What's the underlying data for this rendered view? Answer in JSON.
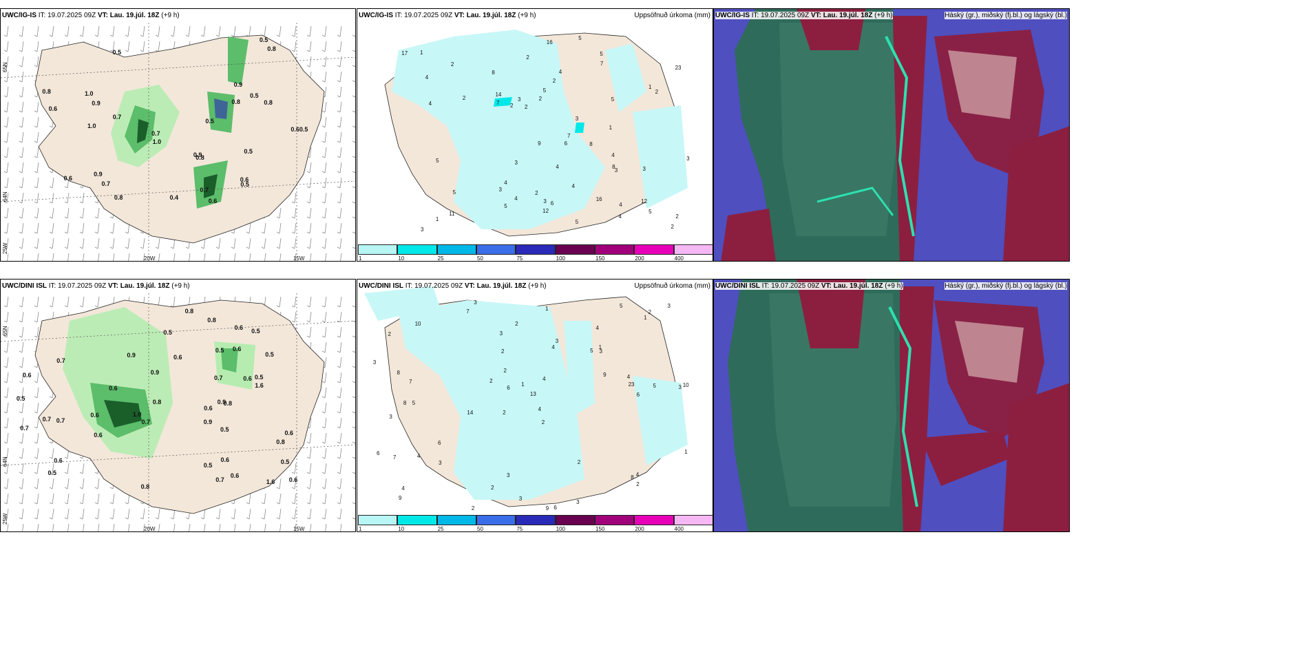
{
  "rows": [
    {
      "model": "UWC/IG-IS",
      "it_label": "IT:",
      "it_value": "19.07.2025 09Z",
      "vt_label": "VT:",
      "vt_value": "Lau. 19.júl. 18Z",
      "lead": "(+9 h)",
      "lat_labels": [
        "65N",
        "64N",
        "25W"
      ],
      "lon_labels": [
        "20W",
        "15W"
      ],
      "precip_values": [
        "0.6",
        "0.5",
        "0.9",
        "1.0",
        "0.5",
        "0.7",
        "0.60.5",
        "0.7",
        "1.0",
        "0.7",
        "0.6",
        "0.8",
        "0.7",
        "0.9",
        "0.8",
        "0.5",
        "0.6",
        "0.8",
        "0.5",
        "0.8",
        "0.6",
        "0.8",
        "0.8",
        "0.5",
        "0.5",
        "0.9",
        "1.0",
        "0.9",
        "0.4"
      ],
      "accum_values": [
        "1",
        "3",
        "7",
        "4",
        "2",
        "5",
        "12",
        "5",
        "4",
        "3",
        "2",
        "7",
        "4",
        "16",
        "16",
        "14",
        "8",
        "5",
        "9",
        "23",
        "17",
        "11",
        "12",
        "8",
        "3",
        "7",
        "3",
        "2",
        "2",
        "4",
        "5",
        "3",
        "4",
        "3",
        "6",
        "5",
        "3",
        "5",
        "4",
        "2",
        "2",
        "4",
        "8",
        "5",
        "1",
        "2",
        "5",
        "6",
        "3",
        "2",
        "4",
        "2",
        "1",
        "4",
        "5",
        "2",
        "1",
        "2",
        "3",
        "4"
      ]
    },
    {
      "model": "UWC/DINI ISL",
      "it_label": "IT:",
      "it_value": "19.07.2025 09Z",
      "vt_label": "VT:",
      "vt_value": "Lau. 19.júl. 18Z",
      "lead": "(+9 h)",
      "lat_labels": [
        "65N",
        "64N",
        "25W"
      ],
      "lon_labels": [
        "20W",
        "15W"
      ],
      "precip_values": [
        "0.9",
        "0.6",
        "0.6",
        "0.8",
        "0.5",
        "0.6",
        "0.5",
        "0.9",
        "0.5",
        "0.6",
        "0.9",
        "0.6",
        "0.7",
        "0.5",
        "0.6",
        "1.6",
        "0.5",
        "0.7",
        "0.6",
        "0.9",
        "0.7",
        "0.5",
        "0.7",
        "0.8",
        "1.6",
        "0.6",
        "0.7",
        "0.5",
        "0.6",
        "0.7",
        "0.5",
        "0.8",
        "0.6",
        "0.6",
        "0.6",
        "0.5",
        "0.6",
        "0.8",
        "0.8",
        "0.7",
        "1.0",
        "0.6",
        "0.5",
        "0.8"
      ],
      "accum_values": [
        "3",
        "4",
        "3",
        "2",
        "2",
        "5",
        "2",
        "5",
        "3",
        "4",
        "13",
        "9",
        "7",
        "14",
        "9",
        "6",
        "3",
        "5",
        "9",
        "6",
        "7",
        "8",
        "10",
        "5",
        "6",
        "8",
        "6",
        "23",
        "4",
        "7",
        "8",
        "3",
        "4",
        "2",
        "2",
        "1",
        "4",
        "2",
        "3",
        "2",
        "4",
        "2",
        "3",
        "10",
        "3",
        "3",
        "2",
        "1",
        "3",
        "4",
        "3",
        "6",
        "4",
        "1",
        "1",
        "3",
        "2",
        "1",
        "2",
        "2"
      ]
    }
  ],
  "accum_title": "Uppsöfnuð úrkoma (mm)",
  "cloud_title": "Háský (gr.), miðský (fj.bl.) og lágský (bl.)",
  "colorbar": {
    "labels": [
      "1",
      "10",
      "25",
      "50",
      "75",
      "100",
      "150",
      "200",
      "400"
    ],
    "colors": [
      "#b8f5f5",
      "#00e8e8",
      "#00b8e8",
      "#3a6de8",
      "#2a2ab8",
      "#6a0050",
      "#a0007a",
      "#e800b8",
      "#f5b8f5"
    ]
  },
  "colors": {
    "land": "#f3e7da",
    "precip_light": "#b6ecb0",
    "precip_mid": "#5cbd6a",
    "precip_dark": "#1a5e2a",
    "accum_fill": "#c8f7f7",
    "cloud_high": "#2f6b5a",
    "cloud_mid": "#8c1f3f",
    "cloud_low": "#4f4fc0"
  }
}
